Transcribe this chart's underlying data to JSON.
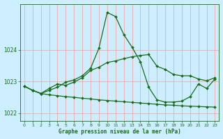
{
  "title": "Graphe pression niveau de la mer (hPa)",
  "background_color": "#cceeff",
  "grid_color_h": "#ff9999",
  "grid_color_v": "#ff9999",
  "line_color": "#1a6b1a",
  "marker_color": "#1a6b1a",
  "xlim": [
    -0.5,
    23.5
  ],
  "ylim": [
    1021.75,
    1025.45
  ],
  "yticks": [
    1022,
    1023,
    1024
  ],
  "xticks": [
    0,
    1,
    2,
    3,
    4,
    5,
    6,
    7,
    8,
    9,
    10,
    11,
    12,
    13,
    14,
    15,
    16,
    17,
    18,
    19,
    20,
    21,
    22,
    23
  ],
  "series1_x": [
    0,
    1,
    2,
    3,
    4,
    5,
    6,
    7,
    8,
    9,
    10,
    11,
    12,
    13,
    14,
    15,
    16,
    17,
    18,
    19,
    20,
    21,
    22,
    23
  ],
  "series1_y": [
    1022.85,
    1022.72,
    1022.62,
    1022.78,
    1022.92,
    1022.88,
    1022.98,
    1023.12,
    1023.35,
    1023.45,
    1023.6,
    1023.65,
    1023.72,
    1023.78,
    1023.82,
    1023.85,
    1023.48,
    1023.38,
    1023.22,
    1023.18,
    1023.18,
    1023.08,
    1023.02,
    1023.12
  ],
  "series2_x": [
    0,
    1,
    2,
    3,
    4,
    5,
    6,
    7,
    8,
    9,
    10,
    11,
    12,
    13,
    14,
    15,
    16,
    17,
    18,
    19,
    20,
    21,
    22,
    23
  ],
  "series2_y": [
    1022.85,
    1022.72,
    1022.62,
    1022.58,
    1022.55,
    1022.52,
    1022.5,
    1022.47,
    1022.45,
    1022.42,
    1022.4,
    1022.38,
    1022.36,
    1022.34,
    1022.32,
    1022.3,
    1022.28,
    1022.26,
    1022.25,
    1022.23,
    1022.22,
    1022.21,
    1022.2,
    1022.19
  ],
  "series3_x": [
    0,
    1,
    2,
    3,
    4,
    5,
    6,
    7,
    8,
    9,
    10,
    11,
    12,
    13,
    14,
    15,
    16,
    17,
    18,
    19,
    20,
    21,
    22,
    23
  ],
  "series3_y": [
    1022.85,
    1022.72,
    1022.62,
    1022.72,
    1022.82,
    1022.98,
    1023.05,
    1023.18,
    1023.42,
    1024.05,
    1025.18,
    1025.05,
    1024.48,
    1024.08,
    1023.62,
    1022.82,
    1022.42,
    1022.35,
    1022.35,
    1022.38,
    1022.52,
    1022.92,
    1022.78,
    1023.08
  ]
}
